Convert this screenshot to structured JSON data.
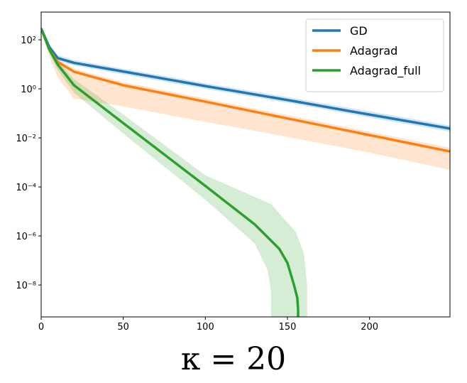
{
  "chart_data": {
    "type": "line",
    "title": "κ = 20",
    "log_y": true,
    "xlim": [
      0,
      249
    ],
    "xticks": [
      0,
      50,
      100,
      150,
      200
    ],
    "ylim": [
      5e-10,
      1350
    ],
    "yticks": [
      {
        "value": 1e-08,
        "label": "10⁻⁸"
      },
      {
        "value": 1e-06,
        "label": "10⁻⁶"
      },
      {
        "value": 0.0001,
        "label": "10⁻⁴"
      },
      {
        "value": 0.01,
        "label": "10⁻²"
      },
      {
        "value": 1,
        "label": "10⁰"
      },
      {
        "value": 100,
        "label": "10²"
      }
    ],
    "legend": "upper right",
    "series": [
      {
        "name": "GD",
        "color": "#1f77b4",
        "x": [
          0,
          5,
          10,
          20,
          50,
          100,
          150,
          200,
          249
        ],
        "values": [
          290,
          50,
          18,
          11.5,
          5.1,
          1.3,
          0.35,
          0.089,
          0.024
        ],
        "band": {
          "upper": {
            "x": [
              0,
              5,
              10,
              20,
              50,
              100,
              150,
              200,
              249
            ],
            "values": [
              330,
              65,
              24,
              15,
              6.6,
              1.7,
              0.46,
              0.12,
              0.032
            ]
          },
          "lower": {
            "x": [
              0,
              5,
              10,
              20,
              50,
              100,
              150,
              200,
              249
            ],
            "values": [
              250,
              38,
              14,
              9,
              3.9,
              1.0,
              0.27,
              0.068,
              0.018
            ]
          }
        }
      },
      {
        "name": "Adagrad",
        "color": "#ff7f0e",
        "x": [
          0,
          5,
          10,
          20,
          50,
          100,
          150,
          200,
          249
        ],
        "values": [
          290,
          40,
          12.6,
          5,
          1.4,
          0.3,
          0.062,
          0.013,
          0.0028
        ],
        "band": {
          "upper": {
            "x": [
              0,
              5,
              10,
              20,
              50,
              100,
              150,
              200,
              249
            ],
            "values": [
              330,
              50,
              16,
              6.5,
              1.9,
              0.4,
              0.085,
              0.018,
              0.004
            ]
          },
          "lower": {
            "x": [
              0,
              5,
              10,
              20,
              50,
              100,
              150,
              200,
              249
            ],
            "values": [
              250,
              20,
              3,
              0.4,
              0.19,
              0.045,
              0.011,
              0.0025,
              0.0005
            ]
          }
        }
      },
      {
        "name": "Adagrad_full",
        "color": "#2ca02c",
        "x": [
          0,
          5,
          10,
          20,
          50,
          100,
          130,
          145,
          150,
          154,
          156,
          156.5,
          156.5
        ],
        "values": [
          290,
          40,
          10,
          1.4,
          0.04,
          0.00011,
          3e-06,
          3e-07,
          8e-08,
          1e-08,
          3e-09,
          1e-09,
          5e-10
        ],
        "band": {
          "upper": {
            "x": [
              0,
              5,
              10,
              20,
              50,
              100,
              140,
              155,
              160,
              162,
              162
            ],
            "values": [
              330,
              55,
              14,
              2.5,
              0.09,
              0.0003,
              2e-05,
              1.5e-06,
              2e-07,
              1e-08,
              5e-10
            ]
          },
          "lower": {
            "x": [
              0,
              5,
              10,
              20,
              50,
              100,
              130,
              138,
              140,
              140
            ],
            "values": [
              250,
              28,
              6,
              0.7,
              0.015,
              3e-05,
              5e-07,
              4e-08,
              5e-09,
              5e-10
            ]
          }
        }
      }
    ]
  }
}
